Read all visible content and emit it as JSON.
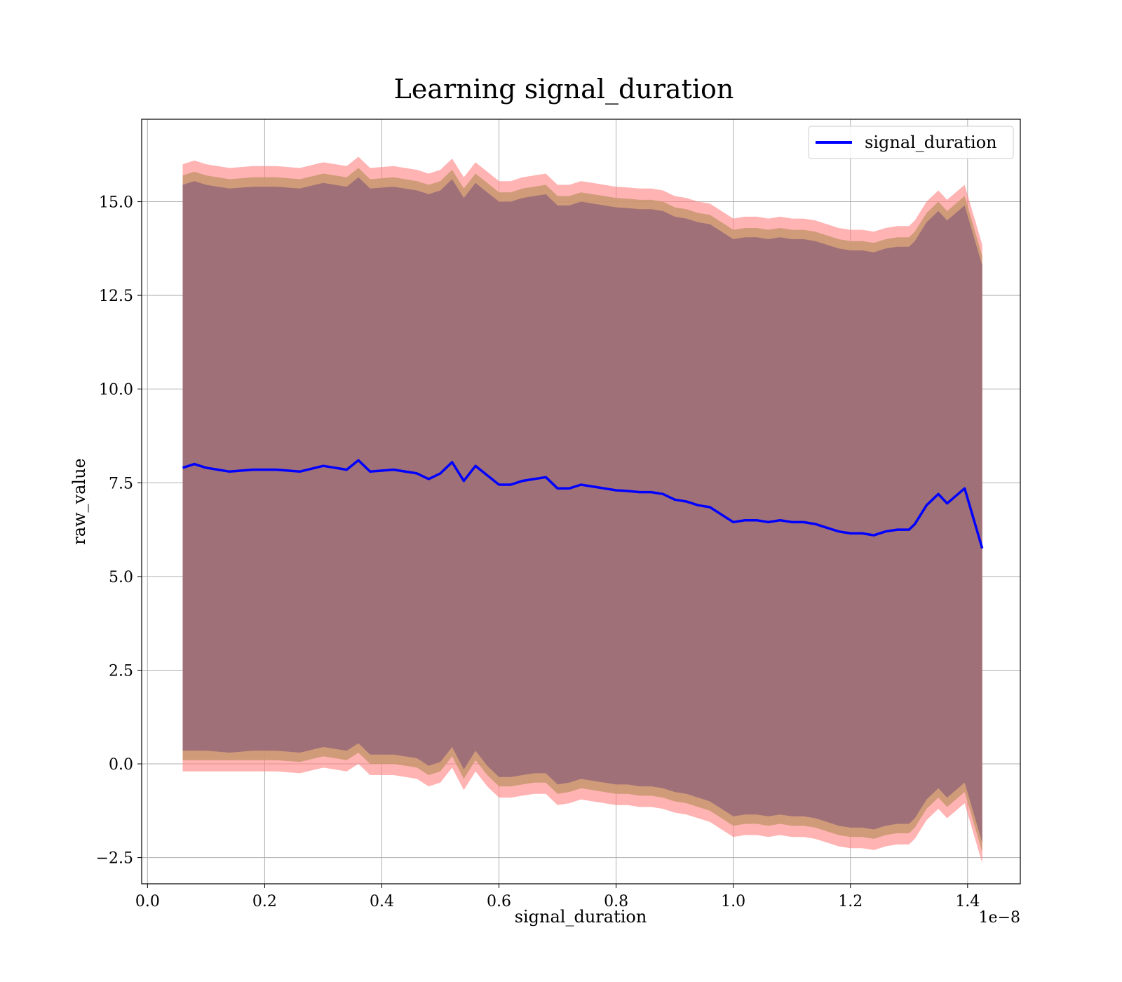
{
  "chart_data": {
    "type": "line",
    "title": "Learning signal_duration",
    "xlabel": "signal_duration",
    "ylabel": "raw_value",
    "x_offset_label": "1e−8",
    "xlim": [
      -1e-10,
      1.49e-08
    ],
    "ylim": [
      -3.2,
      17.2
    ],
    "x_ticks": [
      0.0,
      2e-09,
      4e-09,
      6e-09,
      8e-09,
      1e-08,
      1.2e-08,
      1.4e-08
    ],
    "x_tick_labels": [
      "0.0",
      "0.2",
      "0.4",
      "0.6",
      "0.8",
      "1.0",
      "1.2",
      "1.4"
    ],
    "y_ticks": [
      -2.5,
      0.0,
      2.5,
      5.0,
      7.5,
      10.0,
      12.5,
      15.0
    ],
    "y_tick_labels": [
      "−2.5",
      "0.0",
      "2.5",
      "5.0",
      "7.5",
      "10.0",
      "12.5",
      "15.0"
    ],
    "grid": true,
    "legend_position": "top-right",
    "colors": {
      "line": "#0000ff",
      "outer_band": "#ff8080",
      "middle_band": "#c8966e",
      "inner_band": "#a07078"
    },
    "x": [
      6e-10,
      8e-10,
      1e-09,
      1.4e-09,
      1.8e-09,
      2.2e-09,
      2.6e-09,
      3e-09,
      3.4e-09,
      3.6e-09,
      3.8e-09,
      4.2e-09,
      4.6e-09,
      4.8e-09,
      5e-09,
      5.2e-09,
      5.4e-09,
      5.6e-09,
      5.8e-09,
      6e-09,
      6.2e-09,
      6.4e-09,
      6.6e-09,
      6.8e-09,
      7e-09,
      7.2e-09,
      7.4e-09,
      7.6e-09,
      7.8e-09,
      8e-09,
      8.2e-09,
      8.4e-09,
      8.6e-09,
      8.8e-09,
      9e-09,
      9.2e-09,
      9.4e-09,
      9.6e-09,
      9.8e-09,
      1e-08,
      1.02e-08,
      1.04e-08,
      1.06e-08,
      1.08e-08,
      1.1e-08,
      1.12e-08,
      1.14e-08,
      1.16e-08,
      1.18e-08,
      1.2e-08,
      1.22e-08,
      1.24e-08,
      1.26e-08,
      1.28e-08,
      1.3e-08,
      1.31e-08,
      1.33e-08,
      1.35e-08,
      1.365e-08,
      1.395e-08,
      1.425e-08
    ],
    "series": [
      {
        "name": "signal_duration",
        "values": [
          7.9,
          8.0,
          7.9,
          7.8,
          7.85,
          7.85,
          7.8,
          7.95,
          7.85,
          8.1,
          7.8,
          7.85,
          7.75,
          7.6,
          7.75,
          8.05,
          7.55,
          7.95,
          7.7,
          7.45,
          7.45,
          7.55,
          7.6,
          7.65,
          7.35,
          7.35,
          7.45,
          7.4,
          7.35,
          7.3,
          7.28,
          7.25,
          7.25,
          7.2,
          7.05,
          7.0,
          6.9,
          6.85,
          6.65,
          6.45,
          6.5,
          6.5,
          6.45,
          6.5,
          6.45,
          6.45,
          6.4,
          6.3,
          6.2,
          6.15,
          6.15,
          6.1,
          6.2,
          6.25,
          6.25,
          6.4,
          6.9,
          7.2,
          6.95,
          7.35,
          5.75
        ]
      }
    ],
    "bands": [
      {
        "lower": [
          -0.2,
          -0.2,
          -0.2,
          -0.2,
          -0.2,
          -0.2,
          -0.25,
          -0.1,
          -0.2,
          0.0,
          -0.3,
          -0.3,
          -0.4,
          -0.6,
          -0.5,
          -0.1,
          -0.7,
          -0.2,
          -0.6,
          -0.9,
          -0.9,
          -0.85,
          -0.8,
          -0.8,
          -1.1,
          -1.05,
          -0.95,
          -1.0,
          -1.05,
          -1.1,
          -1.1,
          -1.15,
          -1.15,
          -1.2,
          -1.3,
          -1.35,
          -1.45,
          -1.55,
          -1.75,
          -1.95,
          -1.9,
          -1.9,
          -1.95,
          -1.9,
          -1.95,
          -1.95,
          -2.0,
          -2.1,
          -2.2,
          -2.25,
          -2.25,
          -2.3,
          -2.2,
          -2.15,
          -2.15,
          -2.0,
          -1.5,
          -1.2,
          -1.45,
          -1.05,
          -2.65
        ],
        "upper": [
          16.0,
          16.1,
          16.0,
          15.9,
          15.95,
          15.95,
          15.9,
          16.05,
          15.95,
          16.2,
          15.9,
          15.95,
          15.85,
          15.75,
          15.85,
          16.15,
          15.65,
          16.05,
          15.8,
          15.55,
          15.55,
          15.65,
          15.7,
          15.75,
          15.45,
          15.45,
          15.55,
          15.5,
          15.45,
          15.4,
          15.38,
          15.35,
          15.35,
          15.3,
          15.15,
          15.1,
          15.0,
          14.95,
          14.75,
          14.55,
          14.6,
          14.6,
          14.55,
          14.6,
          14.55,
          14.55,
          14.5,
          14.4,
          14.3,
          14.25,
          14.25,
          14.2,
          14.3,
          14.35,
          14.35,
          14.5,
          15.0,
          15.3,
          15.05,
          15.45,
          13.85
        ]
      },
      {
        "lower": [
          0.1,
          0.1,
          0.1,
          0.1,
          0.1,
          0.1,
          0.05,
          0.2,
          0.1,
          0.3,
          0.0,
          0.0,
          -0.1,
          -0.3,
          -0.2,
          0.2,
          -0.4,
          0.1,
          -0.3,
          -0.6,
          -0.6,
          -0.55,
          -0.5,
          -0.5,
          -0.8,
          -0.75,
          -0.65,
          -0.7,
          -0.75,
          -0.8,
          -0.8,
          -0.85,
          -0.85,
          -0.9,
          -1.0,
          -1.05,
          -1.15,
          -1.25,
          -1.45,
          -1.65,
          -1.6,
          -1.6,
          -1.65,
          -1.6,
          -1.65,
          -1.65,
          -1.7,
          -1.8,
          -1.9,
          -1.95,
          -1.95,
          -2.0,
          -1.9,
          -1.85,
          -1.85,
          -1.7,
          -1.2,
          -0.9,
          -1.15,
          -0.75,
          -2.35
        ],
        "upper": [
          15.7,
          15.8,
          15.7,
          15.6,
          15.65,
          15.65,
          15.6,
          15.75,
          15.65,
          15.9,
          15.6,
          15.65,
          15.55,
          15.45,
          15.55,
          15.85,
          15.35,
          15.75,
          15.5,
          15.25,
          15.25,
          15.35,
          15.4,
          15.45,
          15.15,
          15.15,
          15.25,
          15.2,
          15.15,
          15.1,
          15.08,
          15.05,
          15.05,
          15.0,
          14.85,
          14.8,
          14.7,
          14.65,
          14.45,
          14.25,
          14.3,
          14.3,
          14.25,
          14.3,
          14.25,
          14.25,
          14.2,
          14.1,
          14.0,
          13.95,
          13.95,
          13.9,
          14.0,
          14.05,
          14.05,
          14.2,
          14.7,
          15.0,
          14.75,
          15.15,
          13.55
        ]
      },
      {
        "lower": [
          0.35,
          0.35,
          0.35,
          0.3,
          0.35,
          0.35,
          0.3,
          0.45,
          0.35,
          0.55,
          0.25,
          0.25,
          0.15,
          -0.05,
          0.05,
          0.45,
          -0.15,
          0.35,
          -0.05,
          -0.35,
          -0.35,
          -0.3,
          -0.25,
          -0.25,
          -0.55,
          -0.5,
          -0.4,
          -0.45,
          -0.5,
          -0.55,
          -0.55,
          -0.6,
          -0.6,
          -0.65,
          -0.75,
          -0.8,
          -0.9,
          -1.0,
          -1.2,
          -1.4,
          -1.35,
          -1.35,
          -1.4,
          -1.35,
          -1.4,
          -1.4,
          -1.45,
          -1.55,
          -1.65,
          -1.7,
          -1.7,
          -1.75,
          -1.65,
          -1.6,
          -1.6,
          -1.45,
          -0.95,
          -0.65,
          -0.9,
          -0.5,
          -2.1
        ],
        "upper": [
          15.45,
          15.55,
          15.45,
          15.35,
          15.4,
          15.4,
          15.35,
          15.5,
          15.4,
          15.65,
          15.35,
          15.4,
          15.3,
          15.2,
          15.3,
          15.6,
          15.1,
          15.5,
          15.25,
          15.0,
          15.0,
          15.1,
          15.15,
          15.2,
          14.9,
          14.9,
          15.0,
          14.95,
          14.9,
          14.85,
          14.83,
          14.8,
          14.8,
          14.75,
          14.6,
          14.55,
          14.45,
          14.4,
          14.2,
          14.0,
          14.05,
          14.05,
          14.0,
          14.05,
          14.0,
          14.0,
          13.95,
          13.85,
          13.75,
          13.7,
          13.7,
          13.65,
          13.75,
          13.8,
          13.8,
          13.95,
          14.45,
          14.75,
          14.5,
          14.9,
          13.3
        ]
      }
    ]
  }
}
